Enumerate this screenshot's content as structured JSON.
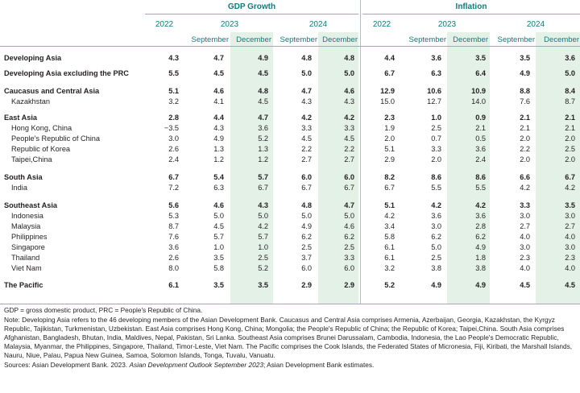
{
  "header": {
    "group1": "GDP Growth",
    "group2": "Inflation",
    "years": [
      "2022",
      "2023",
      "2024",
      "2022",
      "2023",
      "2024"
    ],
    "subs": [
      "September",
      "December",
      "September",
      "December",
      "September",
      "December",
      "September",
      "December"
    ]
  },
  "rows": [
    {
      "label": "Developing Asia",
      "style": "bold",
      "values": [
        "4.3",
        "4.7",
        "4.9",
        "4.8",
        "4.8",
        "4.4",
        "3.6",
        "3.5",
        "3.5",
        "3.6"
      ]
    },
    {
      "label": "Developing Asia excluding the PRC",
      "style": "bold",
      "values": [
        "5.5",
        "4.5",
        "4.5",
        "5.0",
        "5.0",
        "6.7",
        "6.3",
        "6.4",
        "4.9",
        "5.0"
      ]
    },
    {
      "label": "Caucasus and Central Asia",
      "style": "bold",
      "values": [
        "5.1",
        "4.6",
        "4.8",
        "4.7",
        "4.6",
        "12.9",
        "10.6",
        "10.9",
        "8.8",
        "8.4"
      ]
    },
    {
      "label": "Kazakhstan",
      "style": "sub",
      "values": [
        "3.2",
        "4.1",
        "4.5",
        "4.3",
        "4.3",
        "15.0",
        "12.7",
        "14.0",
        "7.6",
        "8.7"
      ]
    },
    {
      "label": "East Asia",
      "style": "bold",
      "values": [
        "2.8",
        "4.4",
        "4.7",
        "4.2",
        "4.2",
        "2.3",
        "1.0",
        "0.9",
        "2.1",
        "2.1"
      ]
    },
    {
      "label": "Hong Kong, China",
      "style": "sub",
      "values": [
        "−3.5",
        "4.3",
        "3.6",
        "3.3",
        "3.3",
        "1.9",
        "2.5",
        "2.1",
        "2.1",
        "2.1"
      ]
    },
    {
      "label": "People's Republic of China",
      "style": "sub",
      "values": [
        "3.0",
        "4.9",
        "5.2",
        "4.5",
        "4.5",
        "2.0",
        "0.7",
        "0.5",
        "2.0",
        "2.0"
      ]
    },
    {
      "label": "Republic of Korea",
      "style": "sub",
      "values": [
        "2.6",
        "1.3",
        "1.3",
        "2.2",
        "2.2",
        "5.1",
        "3.3",
        "3.6",
        "2.2",
        "2.5"
      ]
    },
    {
      "label": "Taipei,China",
      "style": "sub",
      "values": [
        "2.4",
        "1.2",
        "1.2",
        "2.7",
        "2.7",
        "2.9",
        "2.0",
        "2.4",
        "2.0",
        "2.0"
      ]
    },
    {
      "label": "South Asia",
      "style": "bold",
      "values": [
        "6.7",
        "5.4",
        "5.7",
        "6.0",
        "6.0",
        "8.2",
        "8.6",
        "8.6",
        "6.6",
        "6.7"
      ]
    },
    {
      "label": "India",
      "style": "sub",
      "values": [
        "7.2",
        "6.3",
        "6.7",
        "6.7",
        "6.7",
        "6.7",
        "5.5",
        "5.5",
        "4.2",
        "4.2"
      ]
    },
    {
      "label": "Southeast Asia",
      "style": "bold",
      "values": [
        "5.6",
        "4.6",
        "4.3",
        "4.8",
        "4.7",
        "5.1",
        "4.2",
        "4.2",
        "3.3",
        "3.5"
      ]
    },
    {
      "label": "Indonesia",
      "style": "sub",
      "values": [
        "5.3",
        "5.0",
        "5.0",
        "5.0",
        "5.0",
        "4.2",
        "3.6",
        "3.6",
        "3.0",
        "3.0"
      ]
    },
    {
      "label": "Malaysia",
      "style": "sub",
      "values": [
        "8.7",
        "4.5",
        "4.2",
        "4.9",
        "4.6",
        "3.4",
        "3.0",
        "2.8",
        "2.7",
        "2.7"
      ]
    },
    {
      "label": "Philippines",
      "style": "sub",
      "values": [
        "7.6",
        "5.7",
        "5.7",
        "6.2",
        "6.2",
        "5.8",
        "6.2",
        "6.2",
        "4.0",
        "4.0"
      ]
    },
    {
      "label": "Singapore",
      "style": "sub",
      "values": [
        "3.6",
        "1.0",
        "1.0",
        "2.5",
        "2.5",
        "6.1",
        "5.0",
        "4.9",
        "3.0",
        "3.0"
      ]
    },
    {
      "label": "Thailand",
      "style": "sub",
      "values": [
        "2.6",
        "3.5",
        "2.5",
        "3.7",
        "3.3",
        "6.1",
        "2.5",
        "1.8",
        "2.3",
        "2.3"
      ]
    },
    {
      "label": "Viet Nam",
      "style": "sub",
      "values": [
        "8.0",
        "5.8",
        "5.2",
        "6.0",
        "6.0",
        "3.2",
        "3.8",
        "3.8",
        "4.0",
        "4.0"
      ]
    },
    {
      "label": "The Pacific",
      "style": "bold",
      "values": [
        "6.1",
        "3.5",
        "3.5",
        "2.9",
        "2.9",
        "5.2",
        "4.9",
        "4.9",
        "4.5",
        "4.5"
      ]
    }
  ],
  "notes": {
    "abbrev": "GDP = gross domestic product, PRC = People's Republic of China.",
    "note": "Note: Developing Asia refers to the 46 developing members of the Asian Development Bank. Caucasus and Central Asia comprises Armenia, Azerbaijan, Georgia, Kazakhstan, the Kyrgyz Republic, Tajikistan, Turkmenistan, Uzbekistan. East Asia comprises Hong Kong, China; Mongolia; the People's Republic of China; the Republic of Korea; Taipei,China. South Asia comprises Afghanistan, Bangladesh, Bhutan, India, Maldives, Nepal, Pakistan, Sri Lanka. Southeast Asia comprises Brunei Darussalam, Cambodia, Indonesia, the Lao People's Democratic Republic, Malaysia, Myanmar, the Philippines, Singapore, Thailand, Timor-Leste, Viet Nam. The Pacific comprises the Cook Islands, the Federated States of Micronesia, Fiji, Kiribati, the Marshall Islands, Nauru, Niue, Palau, Papua New Guinea, Samoa, Solomon Islands, Tonga, Tuvalu, Vanuatu.",
    "sources_prefix": "Sources: Asian Development Bank. 2023. ",
    "sources_title": "Asian Development Outlook September 2023",
    "sources_suffix": "; Asian Development Bank estimates."
  },
  "colors": {
    "accent": "#0f7a7f",
    "shade": "#e4f1e6",
    "rule": "#7fb9bc"
  }
}
